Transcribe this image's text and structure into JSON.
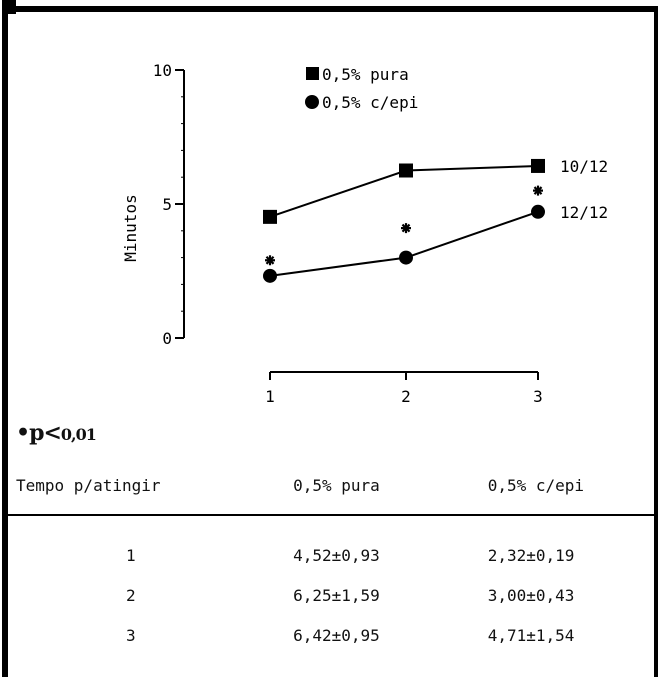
{
  "chart_data": {
    "type": "line",
    "x": [
      1,
      2,
      3
    ],
    "xticks": [
      "1",
      "2",
      "3"
    ],
    "yticks": [
      "0",
      "5",
      "10"
    ],
    "ylim": [
      0,
      10
    ],
    "ylabel": "Minutos",
    "series": [
      {
        "name": "0,5% pura",
        "marker": "square",
        "values": [
          4.52,
          6.25,
          6.42
        ],
        "end_label": "10/12"
      },
      {
        "name": "0,5% c/epi",
        "marker": "circle",
        "values": [
          2.32,
          3.0,
          4.71
        ],
        "end_label": "12/12"
      }
    ],
    "significance_marks_y": [
      2.9,
      4.1,
      5.5
    ],
    "significance_note": {
      "symbol": "•",
      "text": "p",
      "lt": "<",
      "value": "0,01"
    },
    "table": {
      "headers": [
        "Tempo p/atingir",
        "0,5% pura",
        "0,5% c/epi"
      ],
      "rows": [
        [
          "1",
          "4,52±0,93",
          "2,32±0,19"
        ],
        [
          "2",
          "6,25±1,59",
          "3,00±0,43"
        ],
        [
          "3",
          "6,42±0,95",
          "4,71±1,54"
        ]
      ]
    }
  }
}
